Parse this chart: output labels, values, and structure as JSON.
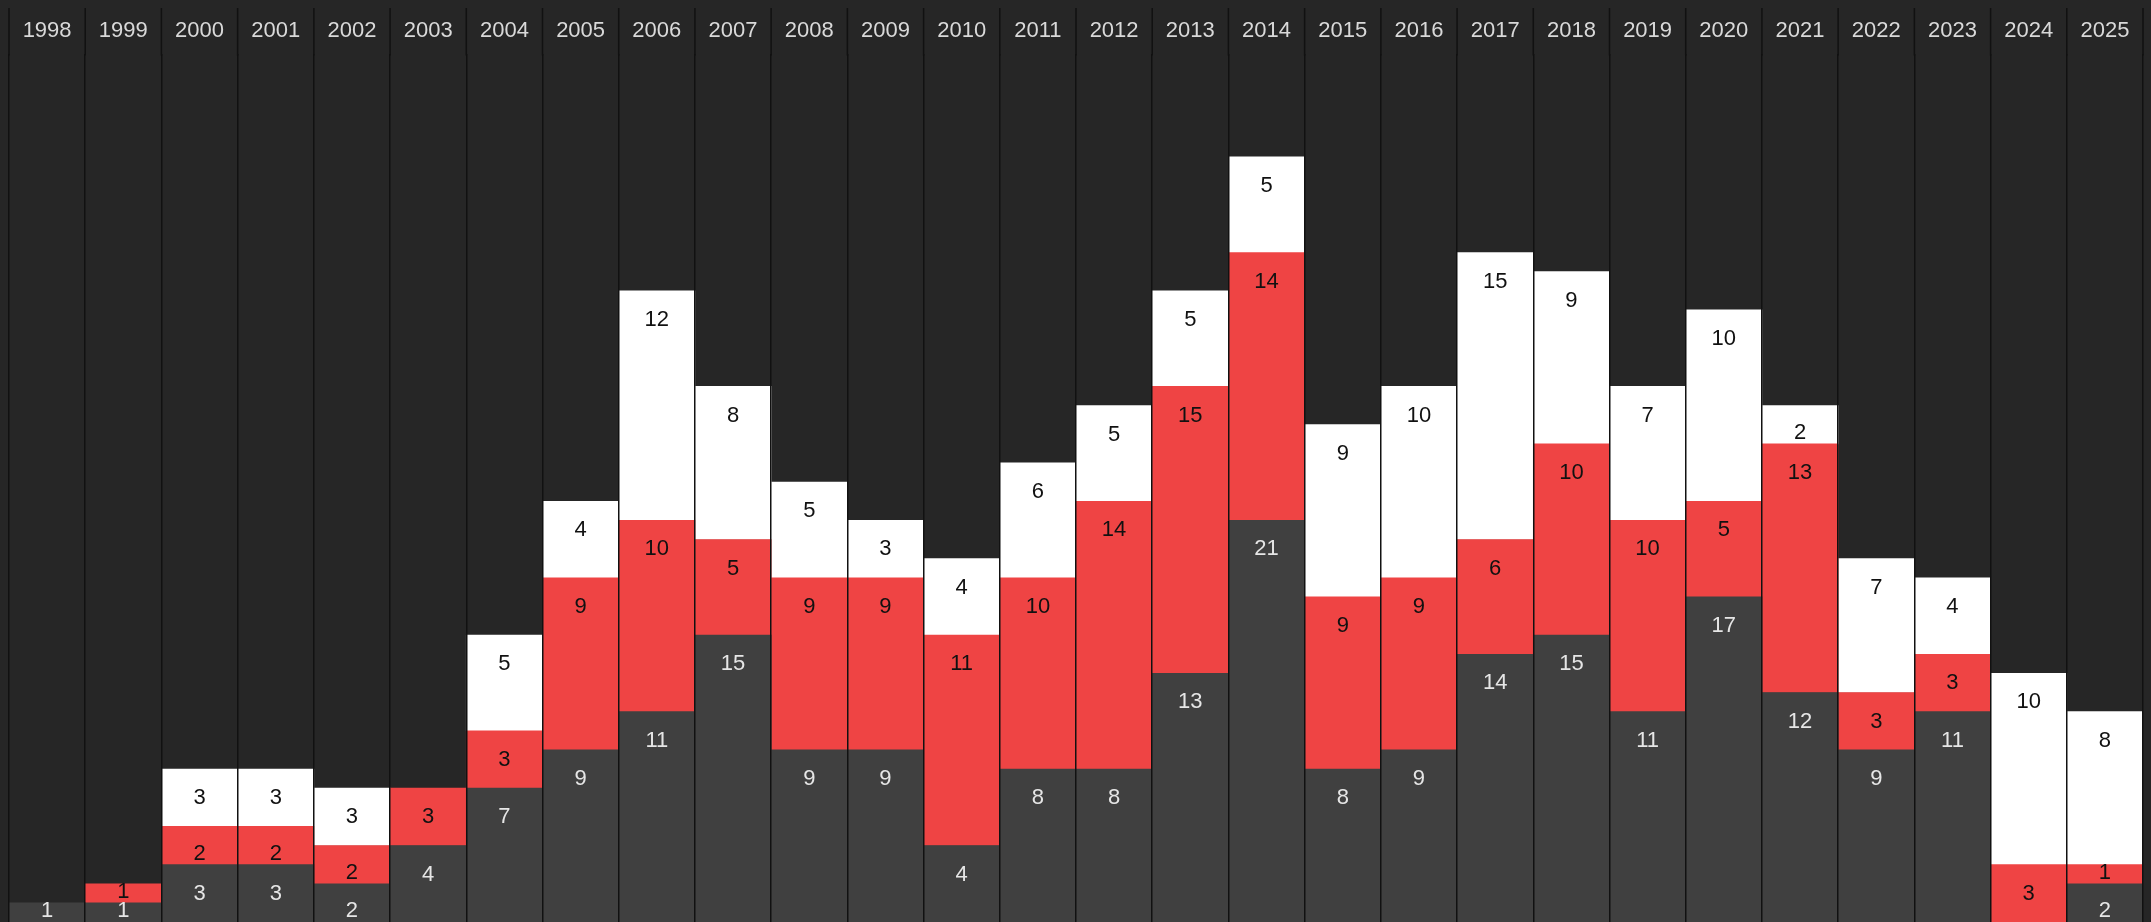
{
  "chart_data": {
    "type": "bar",
    "stacked": true,
    "data_labels": true,
    "grid": "x",
    "categories": [
      "1998",
      "1999",
      "2000",
      "2001",
      "2002",
      "2003",
      "2004",
      "2005",
      "2006",
      "2007",
      "2008",
      "2009",
      "2010",
      "2011",
      "2012",
      "2013",
      "2014",
      "2015",
      "2016",
      "2017",
      "2018",
      "2019",
      "2020",
      "2021",
      "2022",
      "2023",
      "2024",
      "2025"
    ],
    "series": [
      {
        "color": "#404040",
        "values": [
          1,
          1,
          3,
          3,
          2,
          4,
          7,
          9,
          11,
          15,
          9,
          9,
          4,
          8,
          8,
          13,
          21,
          8,
          9,
          14,
          15,
          11,
          17,
          12,
          9,
          11,
          null,
          2
        ]
      },
      {
        "color": "#ef4444",
        "values": [
          null,
          1,
          2,
          2,
          2,
          3,
          3,
          9,
          10,
          5,
          9,
          9,
          11,
          10,
          14,
          15,
          14,
          9,
          9,
          6,
          10,
          10,
          5,
          13,
          3,
          3,
          3,
          1
        ]
      },
      {
        "color": "#ffffff",
        "values": [
          null,
          null,
          3,
          3,
          3,
          null,
          5,
          4,
          12,
          8,
          5,
          3,
          4,
          6,
          5,
          5,
          5,
          9,
          10,
          15,
          9,
          7,
          10,
          2,
          7,
          4,
          10,
          8
        ]
      }
    ]
  }
}
